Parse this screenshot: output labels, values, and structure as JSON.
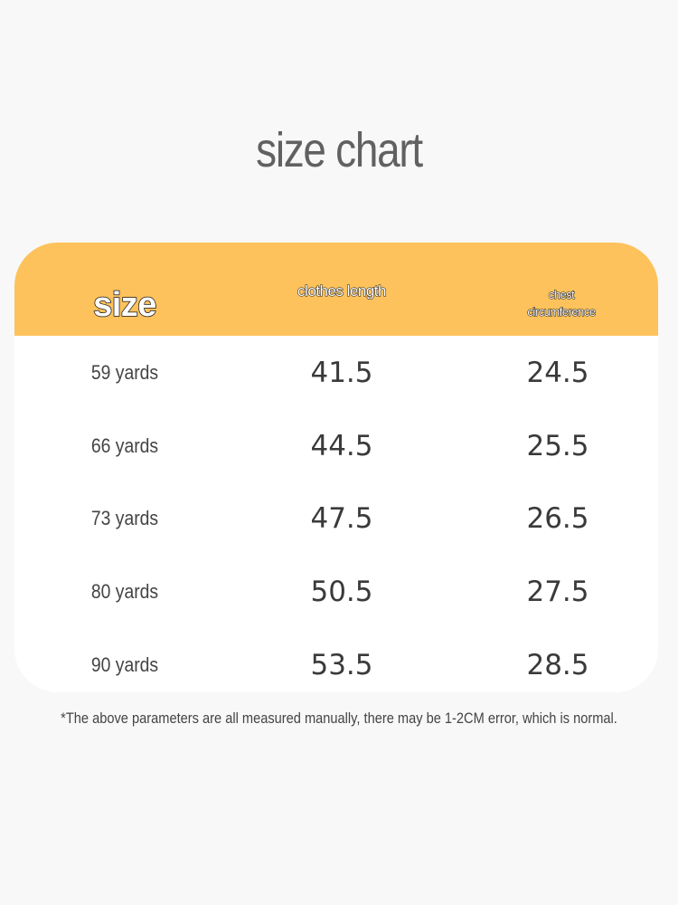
{
  "header": {
    "title": "size chart"
  },
  "table": {
    "columns": [
      "size",
      "clothes length",
      "chest circumference"
    ],
    "rows": [
      [
        "59 yards",
        41.5,
        24.5
      ],
      [
        "66 yards",
        44.5,
        25.5
      ],
      [
        "73 yards",
        47.5,
        26.5
      ],
      [
        "80 yards",
        50.5,
        27.5
      ],
      [
        "90 yards",
        53.5,
        28.5
      ]
    ]
  },
  "footnote": "*The above parameters are all measured manually, there may be 1-2CM error, which is normal."
}
